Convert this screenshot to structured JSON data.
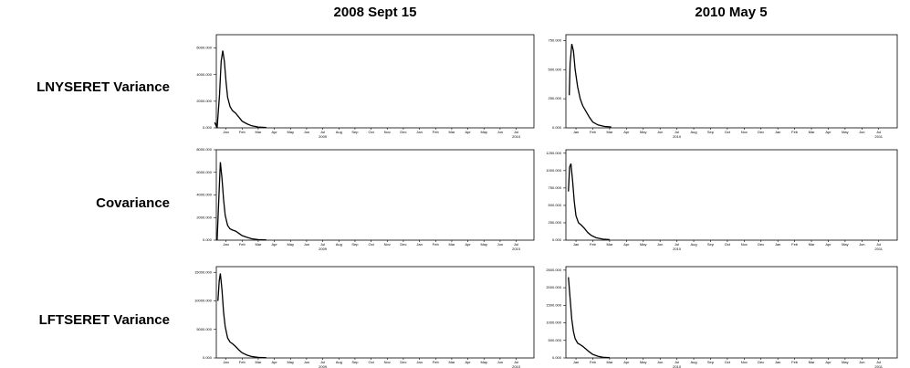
{
  "column_titles": [
    "2008 Sept 15",
    "2010 May 5"
  ],
  "row_labels": [
    "LNYSERET Variance",
    "Covariance",
    "LFTSERET Variance"
  ],
  "chart_data": [
    {
      "type": "line",
      "xlim": [
        0.4,
        20.1
      ],
      "ylim": [
        0,
        7000
      ],
      "yticks": [
        {
          "value": 0,
          "label": "0.000"
        },
        {
          "value": 2000,
          "label": "2000.000"
        },
        {
          "value": 4000,
          "label": "4000.000"
        },
        {
          "value": 6000,
          "label": "6000.000"
        }
      ],
      "xticks": [
        {
          "value": 1,
          "label": "Jan"
        },
        {
          "value": 2,
          "label": "Feb"
        },
        {
          "value": 3,
          "label": "Mar"
        },
        {
          "value": 4,
          "label": "Apr"
        },
        {
          "value": 5,
          "label": "May"
        },
        {
          "value": 6,
          "label": "Jun"
        },
        {
          "value": 7,
          "label": "Jul"
        },
        {
          "value": 8,
          "label": "Aug"
        },
        {
          "value": 9,
          "label": "Sep"
        },
        {
          "value": 10,
          "label": "Oct"
        },
        {
          "value": 11,
          "label": "Nov"
        },
        {
          "value": 12,
          "label": "Dec"
        },
        {
          "value": 13,
          "label": "Jan"
        },
        {
          "value": 14,
          "label": "Feb"
        },
        {
          "value": 15,
          "label": "Mar"
        },
        {
          "value": 16,
          "label": "Apr"
        },
        {
          "value": 17,
          "label": "May"
        },
        {
          "value": 18,
          "label": "Jun"
        },
        {
          "value": 19,
          "label": "Jul"
        }
      ],
      "xyears": [
        {
          "value": 7,
          "label": "2009"
        },
        {
          "value": 19,
          "label": "2010"
        }
      ],
      "x": [
        0.3,
        0.45,
        0.6,
        0.7,
        0.8,
        0.9,
        1.0,
        1.1,
        1.25,
        1.4,
        1.6,
        1.8,
        2.0,
        2.3,
        2.6,
        3.0,
        3.5
      ],
      "series": [
        {
          "color": "#000000",
          "values": [
            400,
            0,
            2500,
            5000,
            5800,
            5000,
            3500,
            2300,
            1600,
            1300,
            1100,
            800,
            500,
            300,
            150,
            60,
            20
          ]
        }
      ]
    },
    {
      "type": "line",
      "xlim": [
        0.4,
        20.1
      ],
      "ylim": [
        0,
        800
      ],
      "yticks": [
        {
          "value": 0,
          "label": "0.000"
        },
        {
          "value": 250,
          "label": "250.000"
        },
        {
          "value": 500,
          "label": "500.000"
        },
        {
          "value": 750,
          "label": "750.000"
        }
      ],
      "xticks": [
        {
          "value": 1,
          "label": "Jan"
        },
        {
          "value": 2,
          "label": "Feb"
        },
        {
          "value": 3,
          "label": "Mar"
        },
        {
          "value": 4,
          "label": "Apr"
        },
        {
          "value": 5,
          "label": "May"
        },
        {
          "value": 6,
          "label": "Jun"
        },
        {
          "value": 7,
          "label": "Jul"
        },
        {
          "value": 8,
          "label": "Aug"
        },
        {
          "value": 9,
          "label": "Sep"
        },
        {
          "value": 10,
          "label": "Oct"
        },
        {
          "value": 11,
          "label": "Nov"
        },
        {
          "value": 12,
          "label": "Dec"
        },
        {
          "value": 13,
          "label": "Jan"
        },
        {
          "value": 14,
          "label": "Feb"
        },
        {
          "value": 15,
          "label": "Mar"
        },
        {
          "value": 16,
          "label": "Apr"
        },
        {
          "value": 17,
          "label": "May"
        },
        {
          "value": 18,
          "label": "Jun"
        },
        {
          "value": 19,
          "label": "Jul"
        }
      ],
      "xyears": [
        {
          "value": 7,
          "label": "2010"
        },
        {
          "value": 19,
          "label": "2011"
        }
      ],
      "x": [
        0.6,
        0.65,
        0.75,
        0.85,
        0.95,
        1.1,
        1.25,
        1.4,
        1.6,
        1.8,
        2.0,
        2.3,
        2.7,
        3.1
      ],
      "series": [
        {
          "color": "#000000",
          "values": [
            280,
            550,
            720,
            660,
            500,
            350,
            250,
            190,
            140,
            90,
            50,
            25,
            12,
            8
          ]
        }
      ]
    },
    {
      "type": "line",
      "xlim": [
        0.4,
        20.1
      ],
      "ylim": [
        0,
        8000
      ],
      "yticks": [
        {
          "value": 0,
          "label": "0.000"
        },
        {
          "value": 2000,
          "label": "2000.000"
        },
        {
          "value": 4000,
          "label": "4000.000"
        },
        {
          "value": 6000,
          "label": "6000.000"
        },
        {
          "value": 8000,
          "label": "8000.000"
        }
      ],
      "xticks": [
        {
          "value": 1,
          "label": "Jan"
        },
        {
          "value": 2,
          "label": "Feb"
        },
        {
          "value": 3,
          "label": "Mar"
        },
        {
          "value": 4,
          "label": "Apr"
        },
        {
          "value": 5,
          "label": "May"
        },
        {
          "value": 6,
          "label": "Jun"
        },
        {
          "value": 7,
          "label": "Jul"
        },
        {
          "value": 8,
          "label": "Aug"
        },
        {
          "value": 9,
          "label": "Sep"
        },
        {
          "value": 10,
          "label": "Oct"
        },
        {
          "value": 11,
          "label": "Nov"
        },
        {
          "value": 12,
          "label": "Dec"
        },
        {
          "value": 13,
          "label": "Jan"
        },
        {
          "value": 14,
          "label": "Feb"
        },
        {
          "value": 15,
          "label": "Mar"
        },
        {
          "value": 16,
          "label": "Apr"
        },
        {
          "value": 17,
          "label": "May"
        },
        {
          "value": 18,
          "label": "Jun"
        },
        {
          "value": 19,
          "label": "Jul"
        }
      ],
      "xyears": [
        {
          "value": 7,
          "label": "2009"
        },
        {
          "value": 19,
          "label": "2010"
        }
      ],
      "x": [
        0.45,
        0.55,
        0.65,
        0.75,
        0.85,
        0.95,
        1.1,
        1.25,
        1.4,
        1.6,
        1.8,
        2.0,
        2.3,
        2.6,
        3.0,
        3.5
      ],
      "series": [
        {
          "color": "#000000",
          "values": [
            0,
            3500,
            6900,
            5500,
            3600,
            2200,
            1300,
            1000,
            900,
            800,
            600,
            400,
            250,
            120,
            50,
            20
          ]
        }
      ]
    },
    {
      "type": "line",
      "xlim": [
        0.4,
        20.1
      ],
      "ylim": [
        0,
        1300
      ],
      "yticks": [
        {
          "value": 0,
          "label": "0.000"
        },
        {
          "value": 250,
          "label": "250.000"
        },
        {
          "value": 500,
          "label": "500.000"
        },
        {
          "value": 750,
          "label": "750.000"
        },
        {
          "value": 1000,
          "label": "1000.000"
        },
        {
          "value": 1250,
          "label": "1250.000"
        }
      ],
      "xticks": [
        {
          "value": 1,
          "label": "Jan"
        },
        {
          "value": 2,
          "label": "Feb"
        },
        {
          "value": 3,
          "label": "Mar"
        },
        {
          "value": 4,
          "label": "Apr"
        },
        {
          "value": 5,
          "label": "May"
        },
        {
          "value": 6,
          "label": "Jun"
        },
        {
          "value": 7,
          "label": "Jul"
        },
        {
          "value": 8,
          "label": "Aug"
        },
        {
          "value": 9,
          "label": "Sep"
        },
        {
          "value": 10,
          "label": "Oct"
        },
        {
          "value": 11,
          "label": "Nov"
        },
        {
          "value": 12,
          "label": "Dec"
        },
        {
          "value": 13,
          "label": "Jan"
        },
        {
          "value": 14,
          "label": "Feb"
        },
        {
          "value": 15,
          "label": "Mar"
        },
        {
          "value": 16,
          "label": "Apr"
        },
        {
          "value": 17,
          "label": "May"
        },
        {
          "value": 18,
          "label": "Jun"
        },
        {
          "value": 19,
          "label": "Jul"
        }
      ],
      "xyears": [
        {
          "value": 7,
          "label": "2010"
        },
        {
          "value": 19,
          "label": "2011"
        }
      ],
      "x": [
        0.55,
        0.62,
        0.7,
        0.8,
        0.9,
        1.0,
        1.15,
        1.3,
        1.5,
        1.7,
        1.9,
        2.2,
        2.6,
        3.0
      ],
      "series": [
        {
          "color": "#000000",
          "values": [
            700,
            1050,
            1100,
            850,
            550,
            350,
            250,
            220,
            170,
            110,
            70,
            35,
            15,
            8
          ]
        }
      ]
    },
    {
      "type": "line",
      "xlim": [
        0.4,
        20.1
      ],
      "ylim": [
        0,
        16000
      ],
      "yticks": [
        {
          "value": 0,
          "label": "0.000"
        },
        {
          "value": 5000,
          "label": "5000.000"
        },
        {
          "value": 10000,
          "label": "10000.000"
        },
        {
          "value": 15000,
          "label": "15000.000"
        }
      ],
      "xticks": [
        {
          "value": 1,
          "label": "Jan"
        },
        {
          "value": 2,
          "label": "Feb"
        },
        {
          "value": 3,
          "label": "Mar"
        },
        {
          "value": 4,
          "label": "Apr"
        },
        {
          "value": 5,
          "label": "May"
        },
        {
          "value": 6,
          "label": "Jun"
        },
        {
          "value": 7,
          "label": "Jul"
        },
        {
          "value": 8,
          "label": "Aug"
        },
        {
          "value": 9,
          "label": "Sep"
        },
        {
          "value": 10,
          "label": "Oct"
        },
        {
          "value": 11,
          "label": "Nov"
        },
        {
          "value": 12,
          "label": "Dec"
        },
        {
          "value": 13,
          "label": "Jan"
        },
        {
          "value": 14,
          "label": "Feb"
        },
        {
          "value": 15,
          "label": "Mar"
        },
        {
          "value": 16,
          "label": "Apr"
        },
        {
          "value": 17,
          "label": "May"
        },
        {
          "value": 18,
          "label": "Jun"
        },
        {
          "value": 19,
          "label": "Jul"
        }
      ],
      "xyears": [
        {
          "value": 7,
          "label": "2009"
        },
        {
          "value": 19,
          "label": "2010"
        }
      ],
      "x": [
        0.5,
        0.58,
        0.65,
        0.75,
        0.85,
        0.95,
        1.1,
        1.25,
        1.4,
        1.6,
        1.8,
        2.0,
        2.3,
        2.6,
        3.0,
        3.5
      ],
      "series": [
        {
          "color": "#000000",
          "values": [
            10000,
            13500,
            14800,
            12000,
            8000,
            5500,
            3500,
            2800,
            2500,
            2000,
            1400,
            900,
            500,
            250,
            100,
            40
          ]
        }
      ]
    },
    {
      "type": "line",
      "xlim": [
        0.4,
        20.1
      ],
      "ylim": [
        0,
        2600
      ],
      "yticks": [
        {
          "value": 0,
          "label": "0.000"
        },
        {
          "value": 500,
          "label": "500.000"
        },
        {
          "value": 1000,
          "label": "1000.000"
        },
        {
          "value": 1500,
          "label": "1500.000"
        },
        {
          "value": 2000,
          "label": "2000.000"
        },
        {
          "value": 2500,
          "label": "2500.000"
        }
      ],
      "xticks": [
        {
          "value": 1,
          "label": "Jan"
        },
        {
          "value": 2,
          "label": "Feb"
        },
        {
          "value": 3,
          "label": "Mar"
        },
        {
          "value": 4,
          "label": "Apr"
        },
        {
          "value": 5,
          "label": "May"
        },
        {
          "value": 6,
          "label": "Jun"
        },
        {
          "value": 7,
          "label": "Jul"
        },
        {
          "value": 8,
          "label": "Aug"
        },
        {
          "value": 9,
          "label": "Sep"
        },
        {
          "value": 10,
          "label": "Oct"
        },
        {
          "value": 11,
          "label": "Nov"
        },
        {
          "value": 12,
          "label": "Dec"
        },
        {
          "value": 13,
          "label": "Jan"
        },
        {
          "value": 14,
          "label": "Feb"
        },
        {
          "value": 15,
          "label": "Mar"
        },
        {
          "value": 16,
          "label": "Apr"
        },
        {
          "value": 17,
          "label": "May"
        },
        {
          "value": 18,
          "label": "Jun"
        },
        {
          "value": 19,
          "label": "Jul"
        }
      ],
      "xyears": [
        {
          "value": 7,
          "label": "2010"
        },
        {
          "value": 19,
          "label": "2011"
        }
      ],
      "x": [
        0.55,
        0.65,
        0.75,
        0.85,
        0.95,
        1.1,
        1.25,
        1.4,
        1.6,
        1.8,
        2.0,
        2.3,
        2.6,
        3.0
      ],
      "series": [
        {
          "color": "#000000",
          "values": [
            2300,
            1700,
            1100,
            750,
            550,
            420,
            380,
            330,
            250,
            170,
            100,
            50,
            20,
            10
          ]
        }
      ]
    }
  ]
}
